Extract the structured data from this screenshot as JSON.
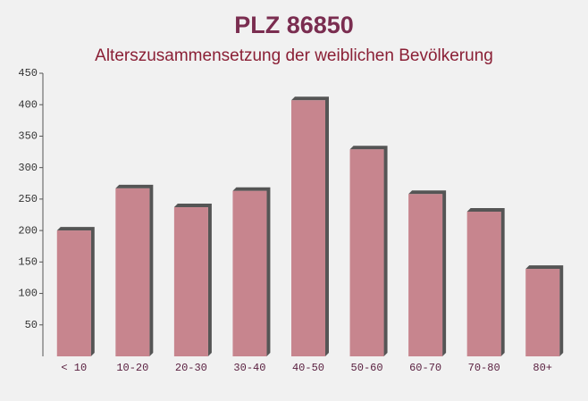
{
  "chart_data": {
    "type": "bar",
    "title": "PLZ 86850",
    "subtitle": "Alterszusammensetzung der weiblichen Bevölkerung",
    "categories": [
      "< 10",
      "10-20",
      "20-30",
      "30-40",
      "40-50",
      "50-60",
      "60-70",
      "70-80",
      "80+"
    ],
    "values": [
      200,
      267,
      237,
      263,
      407,
      329,
      258,
      230,
      139
    ],
    "color": "#c0727c",
    "ylim": [
      0,
      450
    ],
    "yticks": [
      50,
      100,
      150,
      200,
      250,
      300,
      350,
      400,
      450
    ],
    "grid": false
  }
}
